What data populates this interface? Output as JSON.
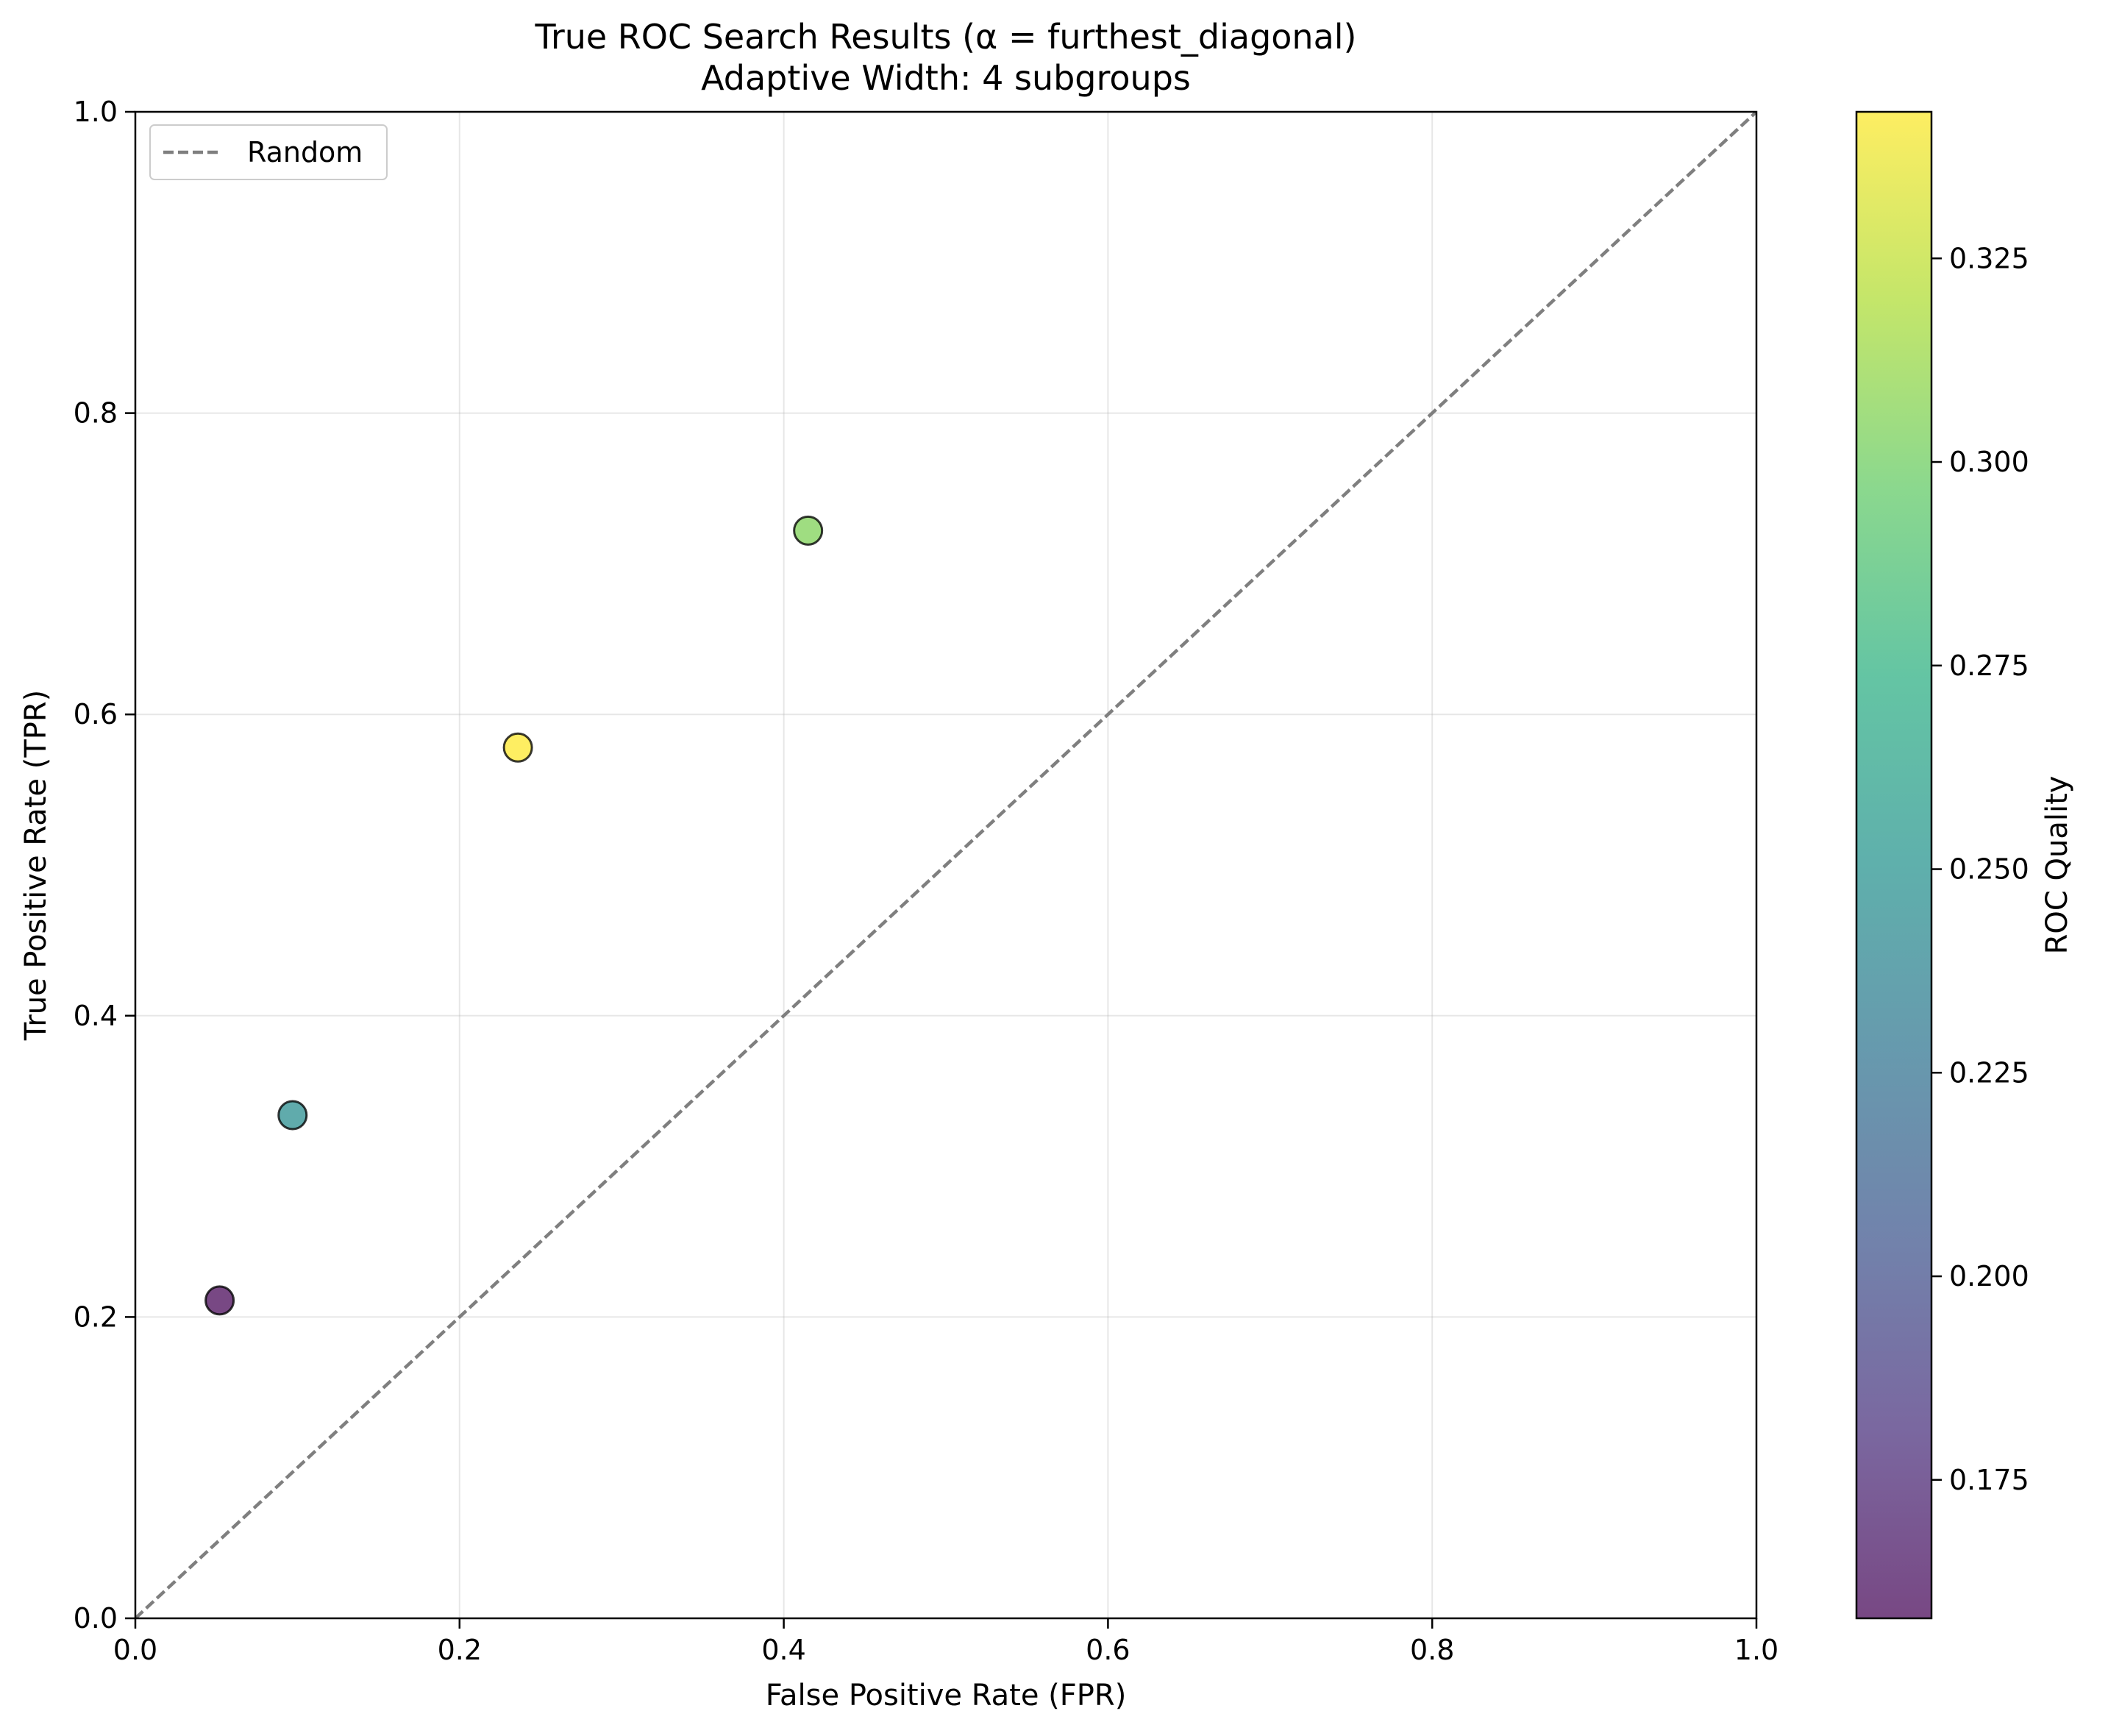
{
  "chart_data": {
    "type": "scatter",
    "title": "True ROC Search Results (α = furthest_diagonal)",
    "subtitle": "Adaptive Width: 4 subgroups",
    "xlabel": "False Positive Rate (FPR)",
    "ylabel": "True Positive Rate (TPR)",
    "xlim": [
      0.0,
      1.0
    ],
    "ylim": [
      0.0,
      1.0
    ],
    "xticks": [
      "0.0",
      "0.2",
      "0.4",
      "0.6",
      "0.8",
      "1.0"
    ],
    "yticks": [
      "0.0",
      "0.2",
      "0.4",
      "0.6",
      "0.8",
      "1.0"
    ],
    "grid": true,
    "legend": {
      "position": "top-left",
      "entries": [
        "Random"
      ]
    },
    "reference_line": {
      "name": "Random",
      "style": "dashed",
      "color": "#7f7f7f",
      "from": [
        0,
        0
      ],
      "to": [
        1,
        1
      ]
    },
    "points": [
      {
        "x": 0.052,
        "y": 0.211,
        "quality": 0.158
      },
      {
        "x": 0.097,
        "y": 0.334,
        "quality": 0.246
      },
      {
        "x": 0.236,
        "y": 0.578,
        "quality": 0.343
      },
      {
        "x": 0.415,
        "y": 0.722,
        "quality": 0.305
      }
    ],
    "colorbar": {
      "label": "ROC Quality",
      "colormap": "viridis",
      "range": [
        0.158,
        0.343
      ],
      "ticks": [
        "0.175",
        "0.200",
        "0.225",
        "0.250",
        "0.275",
        "0.300",
        "0.325"
      ]
    }
  }
}
